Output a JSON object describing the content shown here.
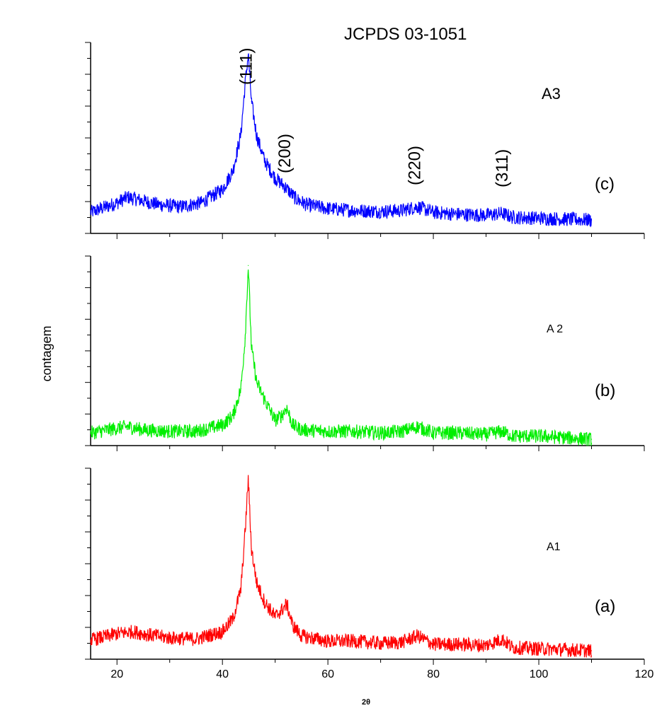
{
  "chart_data": {
    "type": "line",
    "title": "JCPDS 03-1051",
    "xlabel": "2θ",
    "ylabel": "contagem",
    "xlim": [
      15,
      120
    ],
    "x_ticks": [
      "20",
      "40",
      "60",
      "80",
      "100",
      "120"
    ],
    "grid": false,
    "reflections": [
      {
        "label": "(111)",
        "x": 44.5
      },
      {
        "label": "(200)",
        "x": 51.8
      },
      {
        "label": "(220)",
        "x": 76.4
      },
      {
        "label": "(311)",
        "x": 93.0
      }
    ],
    "panels": [
      {
        "sample": "A3",
        "tag": "(c)",
        "color": "#0000ff",
        "ylim": [
          0,
          10
        ],
        "x": [
          15,
          20,
          22,
          25,
          28,
          32,
          36,
          40,
          42,
          43.5,
          44.3,
          44.9,
          45.5,
          46.5,
          48,
          50,
          52,
          54,
          56,
          60,
          65,
          70,
          74,
          77,
          80,
          85,
          90,
          93,
          95,
          100,
          105,
          110
        ],
        "values": [
          1.1,
          1.6,
          1.9,
          1.7,
          1.5,
          1.4,
          1.6,
          2.3,
          3.3,
          5.2,
          7.8,
          9.4,
          6.9,
          5.1,
          3.8,
          2.9,
          2.4,
          1.8,
          1.5,
          1.3,
          1.2,
          1.15,
          1.2,
          1.4,
          1.1,
          1.0,
          0.95,
          1.05,
          0.85,
          0.8,
          0.75,
          0.7
        ]
      },
      {
        "sample": "A 2",
        "tag": "(b)",
        "color": "#00ee00",
        "ylim": [
          0,
          6
        ],
        "x": [
          15,
          20,
          22,
          25,
          30,
          35,
          40,
          42,
          43.5,
          44.3,
          44.9,
          45.5,
          46.5,
          48,
          50,
          51.2,
          52.2,
          53.3,
          55,
          60,
          65,
          70,
          74,
          77,
          80,
          85,
          90,
          93,
          95,
          100,
          105,
          110
        ],
        "values": [
          0.4,
          0.55,
          0.6,
          0.5,
          0.45,
          0.45,
          0.65,
          0.95,
          1.8,
          3.4,
          5.7,
          3.1,
          2.0,
          1.45,
          0.8,
          0.95,
          1.2,
          0.65,
          0.5,
          0.45,
          0.45,
          0.4,
          0.45,
          0.6,
          0.4,
          0.4,
          0.35,
          0.45,
          0.3,
          0.3,
          0.25,
          0.2
        ]
      },
      {
        "sample": "A1",
        "tag": "(a)",
        "color": "#ff0000",
        "ylim": [
          0,
          9
        ],
        "x": [
          15,
          20,
          23,
          26,
          30,
          35,
          40,
          42,
          43.5,
          44.3,
          44.9,
          45.5,
          46.5,
          48,
          50,
          51.2,
          52.2,
          53.3,
          55,
          60,
          65,
          70,
          74,
          77,
          80,
          85,
          90,
          93,
          95,
          100,
          105,
          110
        ],
        "values": [
          0.9,
          1.2,
          1.3,
          1.15,
          1.0,
          0.95,
          1.3,
          1.9,
          3.3,
          6.0,
          8.5,
          5.2,
          3.6,
          2.7,
          2.0,
          2.3,
          2.6,
          1.6,
          1.1,
          0.85,
          0.85,
          0.75,
          0.8,
          1.1,
          0.7,
          0.7,
          0.65,
          0.95,
          0.55,
          0.5,
          0.45,
          0.4
        ]
      }
    ]
  }
}
